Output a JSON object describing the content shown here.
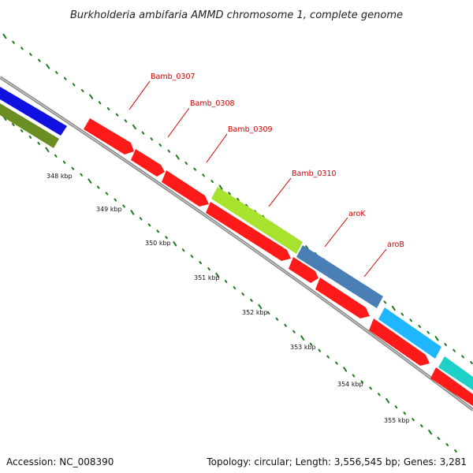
{
  "title": "Burkholderia ambifaria AMMD chromosome 1, complete genome",
  "footer": {
    "accession": "Accession: NC_008390",
    "summary": "Topology: circular; Length: 3,556,545 bp; Genes: 3,281"
  },
  "ticks": [
    "348 kbp",
    "349 kbp",
    "350 kbp",
    "351 kbp",
    "352 kbp",
    "353 kbp",
    "354 kbp",
    "355 kbp"
  ],
  "gene_labels": [
    {
      "name": "Bamb_0307",
      "color": "#cc0000"
    },
    {
      "name": "Bamb_0308",
      "color": "#cc0000"
    },
    {
      "name": "Bamb_0309",
      "color": "#cc0000"
    },
    {
      "name": "Bamb_0310",
      "color": "#cc0000"
    },
    {
      "name": "aroK",
      "color": "#cc0000"
    },
    {
      "name": "aroB",
      "color": "#cc0000"
    }
  ],
  "colors": {
    "backbone": "#8a8a8a",
    "tick_dots": "#1f7a1f",
    "red_gene": "#ff1a1a",
    "blue_gene": "#1010e0",
    "olive_gene": "#6b8e23",
    "lime_gene": "#a6e22e",
    "steel_gene": "#4a7fb5",
    "sky_gene": "#1fb7ff",
    "cyan_gene": "#1fd0c8"
  }
}
